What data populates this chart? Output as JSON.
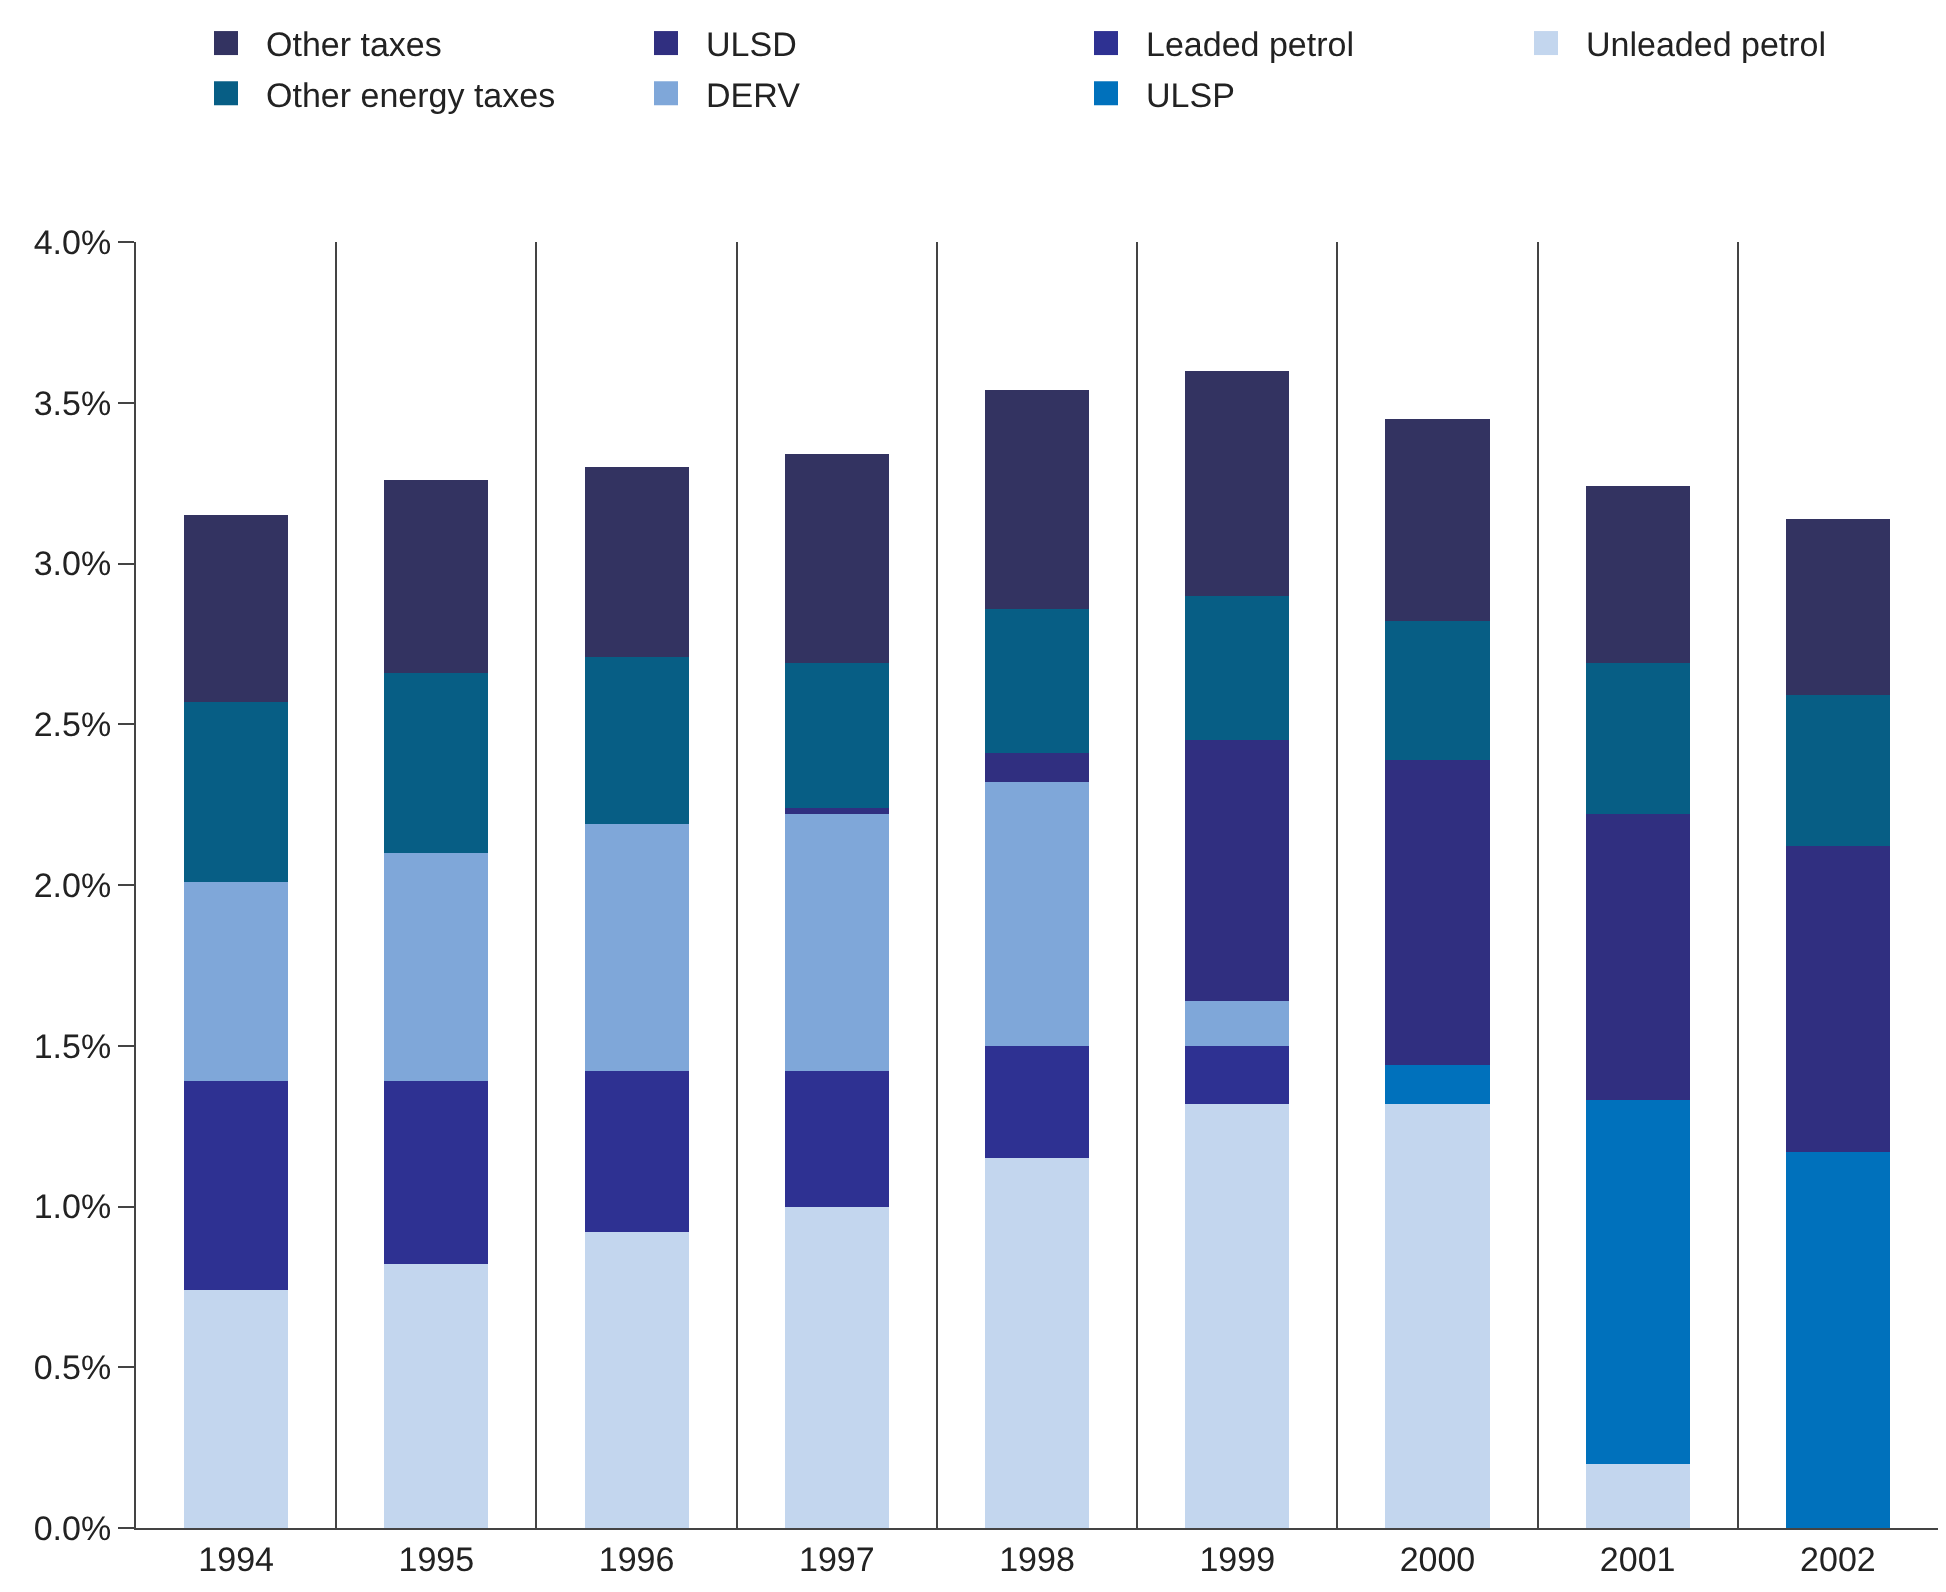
{
  "chart_data": {
    "type": "bar",
    "stacked": true,
    "categories": [
      "1994",
      "1995",
      "1996",
      "1997",
      "1998",
      "1999",
      "2000",
      "2001",
      "2002"
    ],
    "series": [
      {
        "name": "Unleaded petrol",
        "color": "#c3d6ee",
        "values": [
          0.74,
          0.82,
          0.92,
          1.0,
          1.15,
          1.32,
          1.32,
          0.2,
          null
        ]
      },
      {
        "name": "ULSP",
        "color": "#0071bc",
        "values": [
          null,
          null,
          null,
          null,
          null,
          null,
          0.12,
          1.13,
          1.17
        ]
      },
      {
        "name": "Leaded petrol",
        "color": "#2e3192",
        "values": [
          0.65,
          0.57,
          0.5,
          0.42,
          0.35,
          0.18,
          null,
          null,
          null
        ]
      },
      {
        "name": "DERV",
        "color": "#7fa7d9",
        "values": [
          0.62,
          0.71,
          0.77,
          0.8,
          0.82,
          0.14,
          null,
          null,
          null
        ]
      },
      {
        "name": "ULSD",
        "color": "#302f80",
        "values": [
          null,
          null,
          null,
          0.02,
          0.09,
          0.81,
          0.95,
          0.89,
          0.95
        ]
      },
      {
        "name": "Other energy taxes",
        "color": "#075e85",
        "values": [
          0.56,
          0.56,
          0.52,
          0.45,
          0.45,
          0.45,
          0.43,
          0.47,
          0.47
        ]
      },
      {
        "name": "Other taxes",
        "color": "#333361",
        "values": [
          0.58,
          0.6,
          0.59,
          0.65,
          0.68,
          0.7,
          0.63,
          0.55,
          0.55
        ]
      }
    ],
    "ylim": [
      0,
      4
    ],
    "yticks": [
      {
        "value": 0,
        "label": "0.0%"
      },
      {
        "value": 0.5,
        "label": "0.5%"
      },
      {
        "value": 1,
        "label": "1.0%"
      },
      {
        "value": 1.5,
        "label": "1.5%"
      },
      {
        "value": 2,
        "label": "2.0%"
      },
      {
        "value": 2.5,
        "label": "2.5%"
      },
      {
        "value": 3,
        "label": "3.0%"
      },
      {
        "value": 3.5,
        "label": "3.5%"
      },
      {
        "value": 4,
        "label": "4.0%"
      }
    ],
    "grid": "x",
    "legend": "top"
  }
}
